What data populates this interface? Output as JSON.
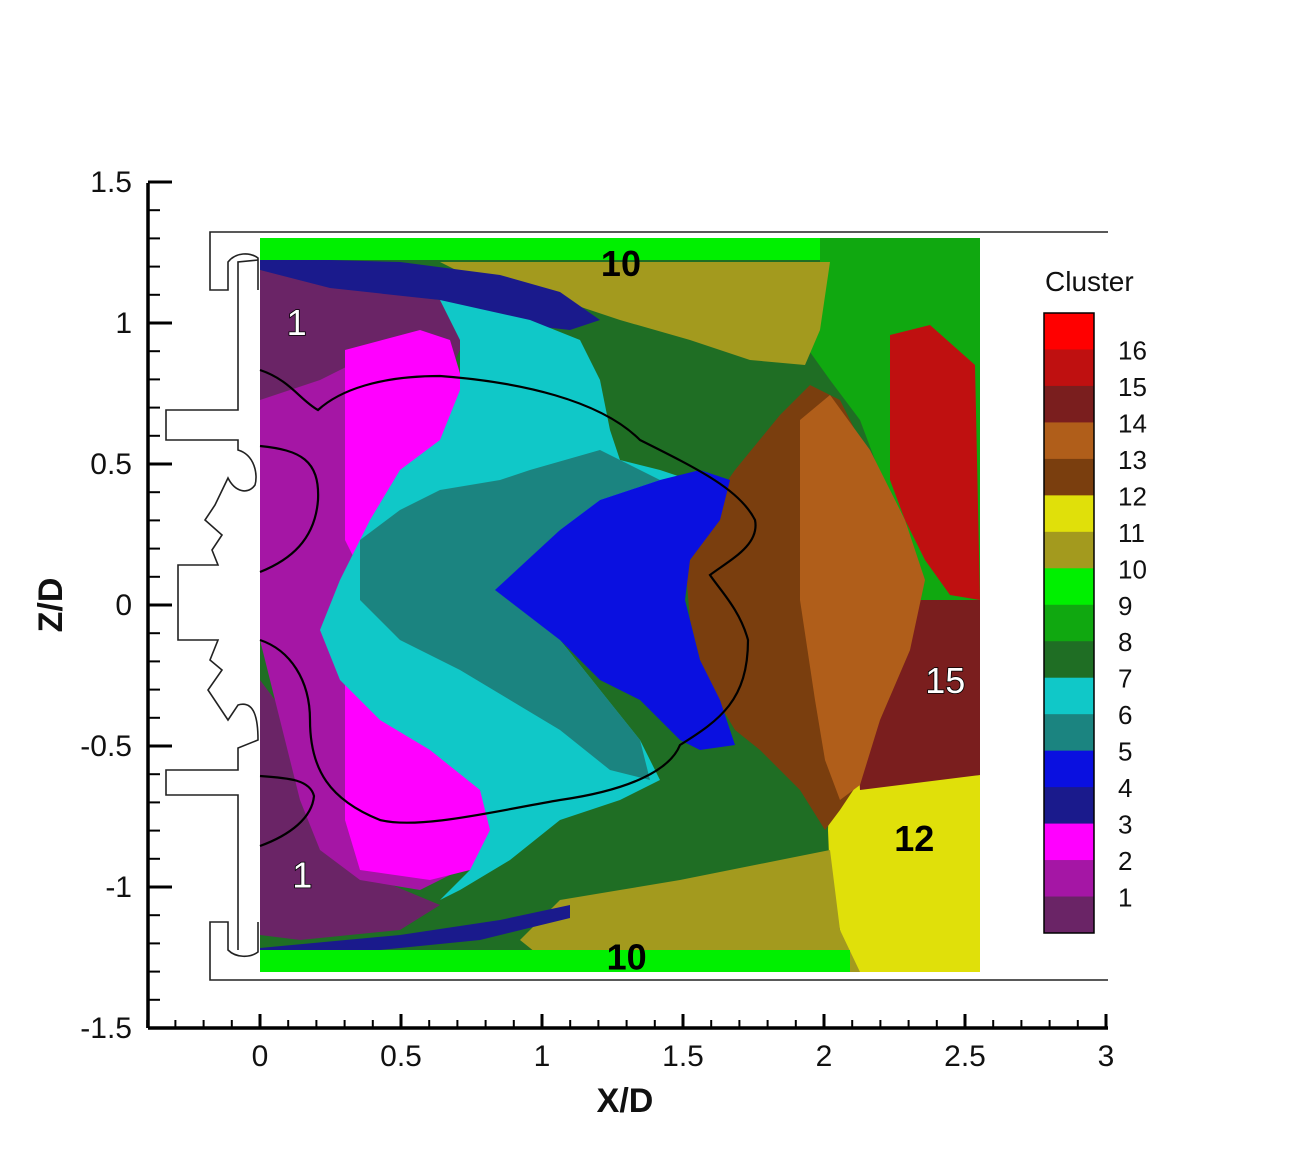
{
  "chart_data": {
    "type": "heatmap",
    "title": "",
    "xlabel": "X/D",
    "ylabel": "Z/D",
    "xlim": [
      -0.4,
      3
    ],
    "ylim": [
      -1.5,
      1.5
    ],
    "x_ticks": [
      "0",
      "0.5",
      "1",
      "1.5",
      "2",
      "2.5",
      "3"
    ],
    "y_ticks": [
      "1.5",
      "1",
      "0.5",
      "0",
      "-0.5",
      "-1",
      "-1.5"
    ],
    "grid": false,
    "legend": {
      "title": "Cluster",
      "placement": "right",
      "levels": [
        {
          "value": 16,
          "label": "16",
          "color": "#ff0000"
        },
        {
          "value": 15,
          "label": "15",
          "color": "#bf1010"
        },
        {
          "value": 14,
          "label": "14",
          "color": "#7a1e1e"
        },
        {
          "value": 13,
          "label": "13",
          "color": "#b05e1a"
        },
        {
          "value": 12,
          "label": "12",
          "color": "#7a3e0e"
        },
        {
          "value": 11,
          "label": "11",
          "color": "#e0e00a"
        },
        {
          "value": 10,
          "label": "10",
          "color": "#a39a1e"
        },
        {
          "value": 9,
          "label": "9",
          "color": "#00f000"
        },
        {
          "value": 8,
          "label": "8",
          "color": "#10a810"
        },
        {
          "value": 7,
          "label": "7",
          "color": "#1f6e24"
        },
        {
          "value": 6,
          "label": "6",
          "color": "#10c8c8"
        },
        {
          "value": 5,
          "label": "5",
          "color": "#1b8480"
        },
        {
          "value": 4,
          "label": "4",
          "color": "#0a10e0"
        },
        {
          "value": 3,
          "label": "3",
          "color": "#1a1a8c"
        },
        {
          "value": 2,
          "label": "2",
          "color": "#ff00ff"
        },
        {
          "value": 1,
          "label": "1",
          "color": "#a516a5"
        },
        {
          "value": 0,
          "label": "",
          "color": "#6a2466"
        }
      ]
    },
    "data_domain": {
      "x": [
        0,
        2.55
      ],
      "z": [
        -1.3,
        1.3
      ]
    },
    "annotations": [
      {
        "text": "10",
        "x": 1.28,
        "z": 1.21,
        "style": "bold"
      },
      {
        "text": "10",
        "x": 1.3,
        "z": -1.25,
        "style": "bold"
      },
      {
        "text": "1",
        "x": 0.13,
        "z": 1.0,
        "style": "outline"
      },
      {
        "text": "1",
        "x": 0.15,
        "z": -0.96,
        "style": "outline"
      },
      {
        "text": "15",
        "x": 2.43,
        "z": -0.27,
        "style": "outline"
      },
      {
        "text": "12",
        "x": 2.32,
        "z": -0.83,
        "style": "bold"
      }
    ]
  }
}
